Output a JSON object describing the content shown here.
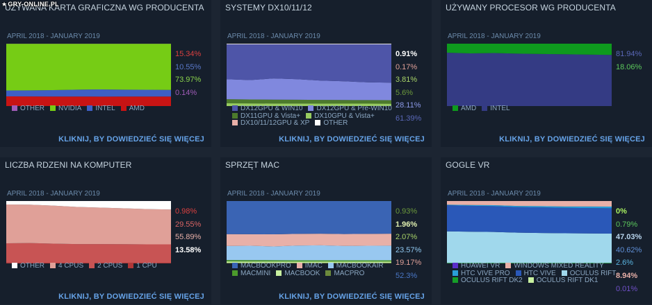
{
  "watermark": {
    "icon": "star-icon",
    "text": "GRY-ONLINE.PL"
  },
  "link_text": "KLIKNIJ, BY DOWIEDZIEĆ SIĘ WIĘCEJ",
  "panels": [
    {
      "title": "UŻYWANA KARTA GRAFICZNA WG PRODUCENTA",
      "date": "APRIL 2018 - JANUARY 2019",
      "values": [
        {
          "text": "15.34%",
          "color": "#d94040"
        },
        {
          "text": "10.55%",
          "color": "#5a78c8"
        },
        {
          "text": "73.97%",
          "color": "#8bd44c"
        },
        {
          "text": "0.14%",
          "color": "#a05cb8"
        }
      ],
      "legend": [
        {
          "label": "OTHER",
          "color": "#a05cb8"
        },
        {
          "label": "NVIDIA",
          "color": "#76cc15"
        },
        {
          "label": "INTEL",
          "color": "#3e5fc4"
        },
        {
          "label": "AMD",
          "color": "#c81414"
        }
      ],
      "chart_data": {
        "type": "area",
        "stacked": true,
        "normalized": true,
        "ylim": [
          0,
          100
        ],
        "series": [
          {
            "name": "AMD",
            "color": "#c81414",
            "values": [
              15.5,
              15.4,
              15.3,
              15.3,
              15.2,
              15.3,
              15.3,
              15.34
            ]
          },
          {
            "name": "INTEL",
            "color": "#3e5fc4",
            "values": [
              9.5,
              9.8,
              10.2,
              11.0,
              11.5,
              11.0,
              10.8,
              10.55
            ]
          },
          {
            "name": "NVIDIA",
            "color": "#76cc15",
            "values": [
              74.8,
              74.6,
              74.3,
              73.5,
              73.1,
              73.5,
              73.7,
              73.97
            ]
          },
          {
            "name": "OTHER",
            "color": "#a05cb8",
            "values": [
              0.2,
              0.2,
              0.2,
              0.2,
              0.2,
              0.2,
              0.2,
              0.14
            ]
          }
        ]
      }
    },
    {
      "title": "SYSTEMY DX10/11/12",
      "date": "APRIL 2018 - JANUARY 2019",
      "values": [
        {
          "text": "0.91%",
          "color": "#ffffff",
          "bold": true
        },
        {
          "text": "0.17%",
          "color": "#e0a098"
        },
        {
          "text": "3.81%",
          "color": "#a8d468"
        },
        {
          "text": "5.6%",
          "color": "#6c9a3c"
        },
        {
          "text": "28.11%",
          "color": "#8c9ae8"
        },
        {
          "text": "61.39%",
          "color": "#5a68b8"
        }
      ],
      "legend": [
        {
          "label": "DX12GPU & WIN10",
          "color": "#4e55a8"
        },
        {
          "label": "DX12GPU & Pre-WIN10",
          "color": "#8088de"
        },
        {
          "label": "DX11GPU & Vista+",
          "color": "#4c7a2c"
        },
        {
          "label": "DX10GPU & Vista+",
          "color": "#98cc60"
        },
        {
          "label": "DX10/11/12GPU & XP",
          "color": "#e8b0a8"
        },
        {
          "label": "OTHER",
          "color": "#ffffff"
        }
      ],
      "chart_data": {
        "type": "area",
        "stacked": true,
        "normalized": true,
        "ylim": [
          0,
          100
        ],
        "series": [
          {
            "name": "DX10GPU & Vista+",
            "color": "#98cc60",
            "values": [
              4.5,
              4.3,
              4.2,
              4.1,
              4.0,
              3.9,
              3.85,
              3.81
            ]
          },
          {
            "name": "DX11GPU & Vista+",
            "color": "#4c7a2c",
            "values": [
              6.5,
              6.3,
              6.1,
              6.0,
              5.9,
              5.8,
              5.7,
              5.6
            ]
          },
          {
            "name": "DX12GPU & Pre-WIN10",
            "color": "#8088de",
            "values": [
              32.0,
              31.0,
              34.0,
              33.0,
              31.0,
              30.0,
              28.5,
              28.11
            ]
          },
          {
            "name": "DX12GPU & WIN10",
            "color": "#4e55a8",
            "values": [
              55.9,
              57.3,
              54.6,
              55.8,
              58.0,
              59.2,
              60.9,
              61.39
            ]
          },
          {
            "name": "DX10/11/12GPU & XP",
            "color": "#e8b0a8",
            "values": [
              0.2,
              0.2,
              0.2,
              0.2,
              0.2,
              0.2,
              0.17,
              0.17
            ]
          },
          {
            "name": "OTHER",
            "color": "#ffffff",
            "values": [
              0.9,
              0.9,
              0.9,
              0.9,
              0.9,
              0.9,
              0.9,
              0.91
            ]
          }
        ]
      }
    },
    {
      "title": "UŻYWANY PROCESOR WG PRODUCENTA",
      "date": "APRIL 2018 - JANUARY 2019",
      "values": [
        {
          "text": "81.94%",
          "color": "#5a68b8"
        },
        {
          "text": "18.06%",
          "color": "#5cc85c"
        }
      ],
      "legend": [
        {
          "label": "AMD",
          "color": "#0e9a1e"
        },
        {
          "label": "INTEL",
          "color": "#343b84"
        }
      ],
      "chart_data": {
        "type": "area",
        "stacked": true,
        "normalized": true,
        "ylim": [
          0,
          100
        ],
        "series": [
          {
            "name": "INTEL",
            "color": "#343b84",
            "values": [
              85.5,
              84.5,
              85.0,
              84.0,
              83.5,
              83.0,
              82.5,
              81.94
            ]
          },
          {
            "name": "AMD",
            "color": "#0e9a1e",
            "values": [
              14.5,
              15.5,
              15.0,
              16.0,
              16.5,
              17.0,
              17.5,
              18.06
            ]
          }
        ]
      }
    },
    {
      "title": "LICZBA RDZENI NA KOMPUTER",
      "date": "APRIL 2018 - JANUARY 2019",
      "values": [
        {
          "text": "0.98%",
          "color": "#d94040"
        },
        {
          "text": "29.55%",
          "color": "#d96464"
        },
        {
          "text": "55.89%",
          "color": "#e8b0a8"
        },
        {
          "text": "13.58%",
          "color": "#ffffff",
          "bold": true
        }
      ],
      "legend": [
        {
          "label": "OTHER",
          "color": "#ffffff"
        },
        {
          "label": "4 CPUS",
          "color": "#e0a098"
        },
        {
          "label": "2 CPUS",
          "color": "#c85454"
        },
        {
          "label": "1 CPU",
          "color": "#b03838"
        }
      ],
      "chart_data": {
        "type": "area",
        "stacked": true,
        "normalized": true,
        "ylim": [
          0,
          100
        ],
        "series": [
          {
            "name": "1 CPU",
            "color": "#b03838",
            "values": [
              1.2,
              1.1,
              1.1,
              1.0,
              1.0,
              1.0,
              1.0,
              0.98
            ]
          },
          {
            "name": "2 CPUS",
            "color": "#c85454",
            "values": [
              31.0,
              31.5,
              30.5,
              30.0,
              30.0,
              29.8,
              29.6,
              29.55
            ]
          },
          {
            "name": "4 CPUS",
            "color": "#e0a098",
            "values": [
              62.3,
              61.5,
              61.0,
              59.5,
              58.5,
              57.5,
              56.5,
              55.89
            ]
          },
          {
            "name": "OTHER",
            "color": "#ffffff",
            "values": [
              5.5,
              5.9,
              7.4,
              9.5,
              10.5,
              11.7,
              12.9,
              13.58
            ]
          }
        ]
      }
    },
    {
      "title": "SPRZĘT MAC",
      "date": "APRIL 2018 - JANUARY 2019",
      "values": [
        {
          "text": "0.93%",
          "color": "#6c9a3c"
        },
        {
          "text": "1.96%",
          "color": "#e0f0b0",
          "bold": true
        },
        {
          "text": "2.07%",
          "color": "#a8d468"
        },
        {
          "text": "23.57%",
          "color": "#90c8f0"
        },
        {
          "text": "19.17%",
          "color": "#e0a098"
        },
        {
          "text": "52.3%",
          "color": "#4a78c8"
        }
      ],
      "legend": [
        {
          "label": "MACBOOKPRO",
          "color": "#3a64b4"
        },
        {
          "label": "IMAC",
          "color": "#e8b0a8"
        },
        {
          "label": "MACBOOKAIR",
          "color": "#98c8f0"
        },
        {
          "label": "MACMINI",
          "color": "#4c9a2c"
        },
        {
          "label": "MACBOOK",
          "color": "#c8f0a0"
        },
        {
          "label": "MACPRO",
          "color": "#6c8a3c"
        }
      ],
      "chart_data": {
        "type": "area",
        "stacked": true,
        "normalized": true,
        "ylim": [
          0,
          100
        ],
        "series": [
          {
            "name": "MACPRO",
            "color": "#6c8a3c",
            "values": [
              1.0,
              1.0,
              1.0,
              0.95,
              0.95,
              0.93,
              0.93,
              0.93
            ]
          },
          {
            "name": "MACBOOK",
            "color": "#c8f0a0",
            "values": [
              2.2,
              2.1,
              2.1,
              2.0,
              2.0,
              2.0,
              1.97,
              1.96
            ]
          },
          {
            "name": "MACMINI",
            "color": "#4c9a2c",
            "values": [
              2.2,
              2.2,
              2.1,
              2.1,
              2.1,
              2.1,
              2.07,
              2.07
            ]
          },
          {
            "name": "MACBOOKAIR",
            "color": "#98c8f0",
            "values": [
              22.5,
              23.0,
              22.0,
              23.5,
              24.0,
              23.0,
              23.3,
              23.57
            ]
          },
          {
            "name": "IMAC",
            "color": "#e8b0a8",
            "values": [
              19.0,
              18.5,
              19.5,
              18.8,
              18.6,
              19.0,
              19.1,
              19.17
            ]
          },
          {
            "name": "MACBOOKPRO",
            "color": "#3a64b4",
            "values": [
              53.1,
              53.2,
              53.3,
              52.65,
              52.35,
              52.97,
              52.63,
              52.3
            ]
          }
        ]
      }
    },
    {
      "title": "GOGLE VR",
      "date": "APRIL 2018 - JANUARY 2019",
      "values": [
        {
          "text": "0%",
          "color": "#a8f060",
          "bold": true
        },
        {
          "text": "0.79%",
          "color": "#5cc85c"
        },
        {
          "text": "47.03%",
          "color": "#b8d4ec",
          "bold": true
        },
        {
          "text": "40.62%",
          "color": "#6090d8"
        },
        {
          "text": "2.6%",
          "color": "#5ab4e0"
        },
        {
          "text": "8.94%",
          "color": "#e8b0a8",
          "bold": true
        },
        {
          "text": "0.01%",
          "color": "#7050c8"
        }
      ],
      "legend": [
        {
          "label": "HUAWEI VR",
          "color": "#5a2ec8"
        },
        {
          "label": "WINDOWS MIXED REALITY",
          "color": "#e8b0a8"
        },
        {
          "label": "HTC VIVE PRO",
          "color": "#2a9ed8"
        },
        {
          "label": "HTC VIVE",
          "color": "#2a58b8"
        },
        {
          "label": "OCULUS RIFT",
          "color": "#a0d8ec"
        },
        {
          "label": "OCULUS RIFT DK2",
          "color": "#169e28"
        },
        {
          "label": "OCULUS RIFT DK1",
          "color": "#c8f0a0"
        }
      ],
      "chart_data": {
        "type": "area",
        "stacked": true,
        "normalized": true,
        "ylim": [
          0,
          100
        ],
        "series": [
          {
            "name": "OCULUS RIFT DK1",
            "color": "#c8f0a0",
            "values": [
              0,
              0,
              0,
              0,
              0,
              0,
              0,
              0
            ]
          },
          {
            "name": "OCULUS RIFT DK2",
            "color": "#169e28",
            "values": [
              0.9,
              0.9,
              0.85,
              0.85,
              0.8,
              0.8,
              0.8,
              0.79
            ]
          },
          {
            "name": "OCULUS RIFT",
            "color": "#a0d8ec",
            "values": [
              50.5,
              50.0,
              49.5,
              48.5,
              48.0,
              47.5,
              47.2,
              47.03
            ]
          },
          {
            "name": "HTC VIVE",
            "color": "#2a58b8",
            "values": [
              42.0,
              41.5,
              41.5,
              41.0,
              41.0,
              40.8,
              40.7,
              40.62
            ]
          },
          {
            "name": "HTC VIVE PRO",
            "color": "#2a9ed8",
            "values": [
              0.8,
              1.2,
              1.5,
              1.8,
              2.0,
              2.2,
              2.5,
              2.6
            ]
          },
          {
            "name": "WINDOWS MIXED REALITY",
            "color": "#e8b0a8",
            "values": [
              5.8,
              6.4,
              6.65,
              7.85,
              8.2,
              8.7,
              8.8,
              8.94
            ]
          },
          {
            "name": "HUAWEI VR",
            "color": "#5a2ec8",
            "values": [
              0,
              0,
              0,
              0,
              0,
              0,
              0,
              0.01
            ]
          }
        ]
      }
    }
  ]
}
